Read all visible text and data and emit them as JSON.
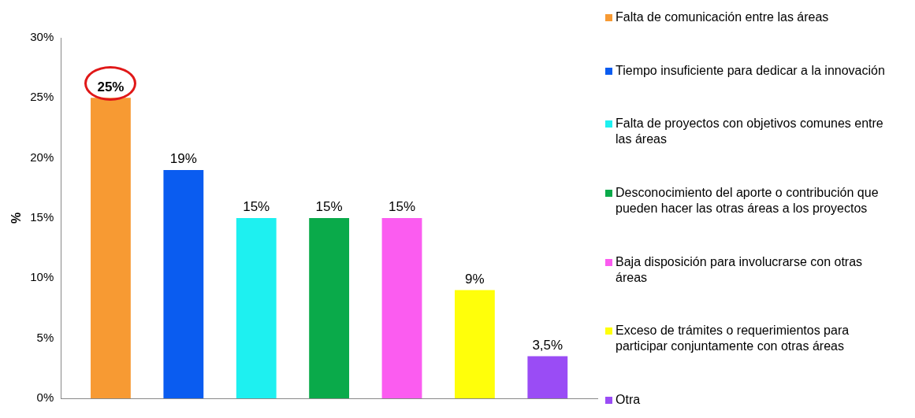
{
  "chart_data": {
    "type": "bar",
    "ylabel": "%",
    "categories": [
      null
    ],
    "series": [
      {
        "name": "Falta de comunicación entre las áreas",
        "color": "#f79a33",
        "values": [
          25
        ],
        "value_labels": [
          "25%"
        ]
      },
      {
        "name": "Tiempo insuficiente para dedicar a la innovación",
        "color": "#0a5cf0",
        "values": [
          19
        ],
        "value_labels": [
          "19%"
        ]
      },
      {
        "name": "Falta de proyectos con objetivos comunes entre las áreas",
        "color": "#1ef0f0",
        "values": [
          15
        ],
        "value_labels": [
          "15%"
        ]
      },
      {
        "name": "Desconocimiento del aporte o contribución que pueden hacer las otras áreas a los proyectos",
        "color": "#0aaa4a",
        "values": [
          15
        ],
        "value_labels": [
          "15%"
        ]
      },
      {
        "name": "Baja disposición para involucrarse con otras áreas",
        "color": "#fb5cf0",
        "values": [
          15
        ],
        "value_labels": [
          "15%"
        ]
      },
      {
        "name": "Exceso de trámites o requerimientos para participar conjuntamente con otras áreas",
        "color": "#ffff0a",
        "values": [
          9
        ],
        "value_labels": [
          "9%"
        ]
      },
      {
        "name": "Otra",
        "color": "#9a4cf5",
        "values": [
          3.5
        ],
        "value_labels": [
          "3,5%"
        ]
      }
    ],
    "ylim": [
      0,
      30
    ],
    "yticks": [
      {
        "value": 0,
        "label": "0%"
      },
      {
        "value": 5,
        "label": "5%"
      },
      {
        "value": 10,
        "label": "10%"
      },
      {
        "value": 15,
        "label": "15%"
      },
      {
        "value": 20,
        "label": "20%"
      },
      {
        "value": 25,
        "label": "25%"
      },
      {
        "value": 30,
        "label": "30%"
      }
    ],
    "grid": false,
    "legend": "right"
  }
}
